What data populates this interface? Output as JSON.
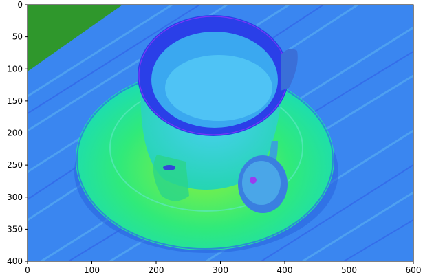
{
  "chart_data": {
    "type": "image",
    "title": "",
    "xlabel": "",
    "ylabel": "",
    "xlim": [
      0,
      600
    ],
    "ylim": [
      400,
      0
    ],
    "x_ticks": [
      "0",
      "100",
      "200",
      "300",
      "400",
      "500",
      "600"
    ],
    "y_ticks": [
      "0",
      "50",
      "100",
      "150",
      "200",
      "250",
      "300",
      "350",
      "400"
    ],
    "image_content": "false-color photo of a cup on a saucer with a spoon on a wooden table",
    "colors": {
      "background": "#2e7cf0",
      "table_blue": "#3f79f6",
      "grass_green": "#2f9a2e",
      "saucer": "#15e3b3",
      "saucer_yellow_green": "#7aef3b",
      "cup_rim": "#2a3fe8",
      "cup_body": "#2ad2cf",
      "cup_inner": "#3ab8f4",
      "spoon": "#3aa4d8"
    }
  }
}
